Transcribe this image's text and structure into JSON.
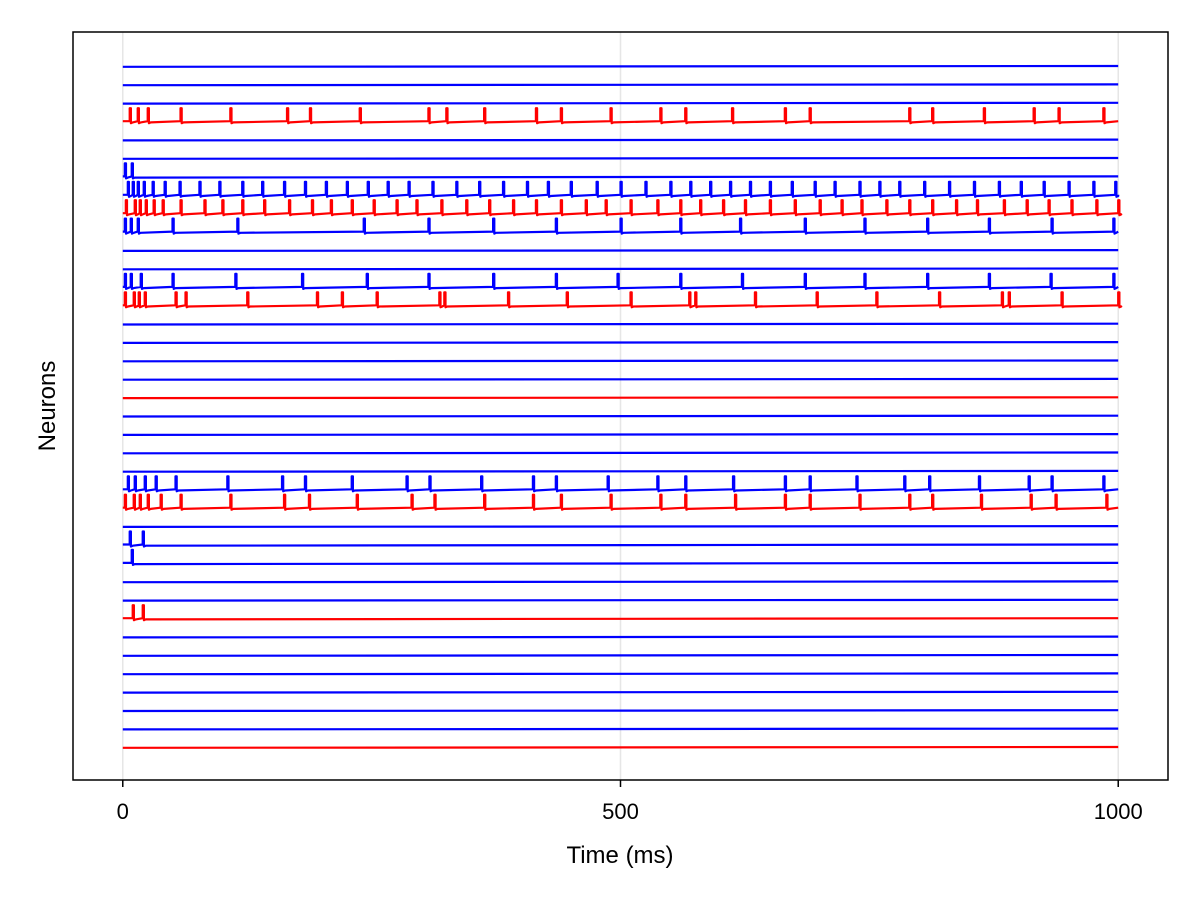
{
  "chart_data": {
    "type": "line",
    "title": "",
    "xlabel": "Time (ms)",
    "ylabel": "Neurons",
    "xlim": [
      -50,
      1050
    ],
    "xticks": [
      0,
      500,
      1000
    ],
    "grid": "vertical",
    "legend": "none",
    "colors": {
      "excitatory": "#0000ff",
      "inhibitory": "#ff0000",
      "grid": "#e6e6e6",
      "frame": "#000000"
    },
    "traces": [
      {
        "color": "blue",
        "spikes": []
      },
      {
        "color": "blue",
        "spikes": []
      },
      {
        "color": "blue",
        "spikes": []
      },
      {
        "color": "red",
        "spikes": [
          7,
          15,
          25,
          58,
          108,
          165,
          188,
          238,
          307,
          325,
          363,
          415,
          440,
          490,
          540,
          565,
          612,
          665,
          690,
          790,
          813,
          865,
          915,
          940,
          985
        ]
      },
      {
        "color": "blue",
        "spikes": []
      },
      {
        "color": "blue",
        "spikes": []
      },
      {
        "color": "blue",
        "spikes": [
          2,
          9
        ]
      },
      {
        "color": "blue",
        "spikes": [
          1,
          5,
          10,
          15,
          21,
          30,
          42,
          57,
          77,
          97,
          120,
          140,
          162,
          183,
          204,
          225,
          246,
          266,
          287,
          311,
          335,
          358,
          382,
          406,
          427,
          450,
          476,
          500,
          525,
          550,
          570,
          590,
          610,
          630,
          650,
          672,
          695,
          715,
          740,
          760,
          780,
          805,
          830,
          855,
          880,
          902,
          925,
          950,
          975,
          997
        ]
      },
      {
        "color": "red",
        "spikes": [
          3,
          7,
          12,
          17,
          23,
          31,
          40,
          58,
          82,
          100,
          120,
          142,
          167,
          190,
          209,
          230,
          252,
          275,
          295,
          320,
          345,
          368,
          392,
          415,
          440,
          465,
          485,
          510,
          537,
          560,
          580,
          603,
          625,
          650,
          675,
          700,
          722,
          742,
          767,
          790,
          813,
          837,
          858,
          885,
          908,
          930,
          953,
          978,
          1000
        ]
      },
      {
        "color": "blue",
        "spikes": [
          2,
          8,
          15,
          50,
          115,
          242,
          307,
          372,
          435,
          500,
          560,
          620,
          685,
          745,
          808,
          870,
          933,
          995
        ]
      },
      {
        "color": "blue",
        "spikes": []
      },
      {
        "color": "blue",
        "spikes": []
      },
      {
        "color": "blue",
        "spikes": [
          2,
          8,
          18,
          50,
          113,
          180,
          245,
          307,
          372,
          435,
          497,
          560,
          622,
          685,
          745,
          808,
          870,
          932,
          995
        ]
      },
      {
        "color": "red",
        "spikes": [
          2,
          6,
          11,
          16,
          22,
          53,
          63,
          125,
          195,
          220,
          255,
          318,
          323,
          387,
          446,
          510,
          569,
          575,
          635,
          697,
          757,
          820,
          883,
          890,
          943,
          1000
        ]
      },
      {
        "color": "blue",
        "spikes": []
      },
      {
        "color": "blue",
        "spikes": []
      },
      {
        "color": "blue",
        "spikes": []
      },
      {
        "color": "blue",
        "spikes": []
      },
      {
        "color": "red",
        "spikes": []
      },
      {
        "color": "blue",
        "spikes": []
      },
      {
        "color": "blue",
        "spikes": []
      },
      {
        "color": "blue",
        "spikes": []
      },
      {
        "color": "blue",
        "spikes": []
      },
      {
        "color": "blue",
        "spikes": [
          1,
          5,
          12,
          22,
          33,
          53,
          105,
          160,
          183,
          230,
          285,
          308,
          360,
          412,
          435,
          487,
          537,
          565,
          613,
          665,
          690,
          737,
          785,
          810,
          860,
          910,
          933,
          985
        ]
      },
      {
        "color": "red",
        "spikes": [
          2,
          6,
          11,
          17,
          25,
          38,
          58,
          108,
          162,
          187,
          235,
          290,
          313,
          363,
          412,
          440,
          490,
          540,
          565,
          615,
          665,
          690,
          740,
          790,
          813,
          862,
          912,
          937,
          988
        ]
      },
      {
        "color": "blue",
        "spikes": []
      },
      {
        "color": "blue",
        "spikes": [
          7,
          20
        ]
      },
      {
        "color": "blue",
        "spikes": [
          9
        ]
      },
      {
        "color": "blue",
        "spikes": []
      },
      {
        "color": "blue",
        "spikes": []
      },
      {
        "color": "red",
        "spikes": [
          10,
          20
        ]
      },
      {
        "color": "blue",
        "spikes": []
      },
      {
        "color": "blue",
        "spikes": []
      },
      {
        "color": "blue",
        "spikes": []
      },
      {
        "color": "blue",
        "spikes": []
      },
      {
        "color": "blue",
        "spikes": []
      },
      {
        "color": "blue",
        "spikes": []
      },
      {
        "color": "red",
        "spikes": []
      }
    ]
  }
}
